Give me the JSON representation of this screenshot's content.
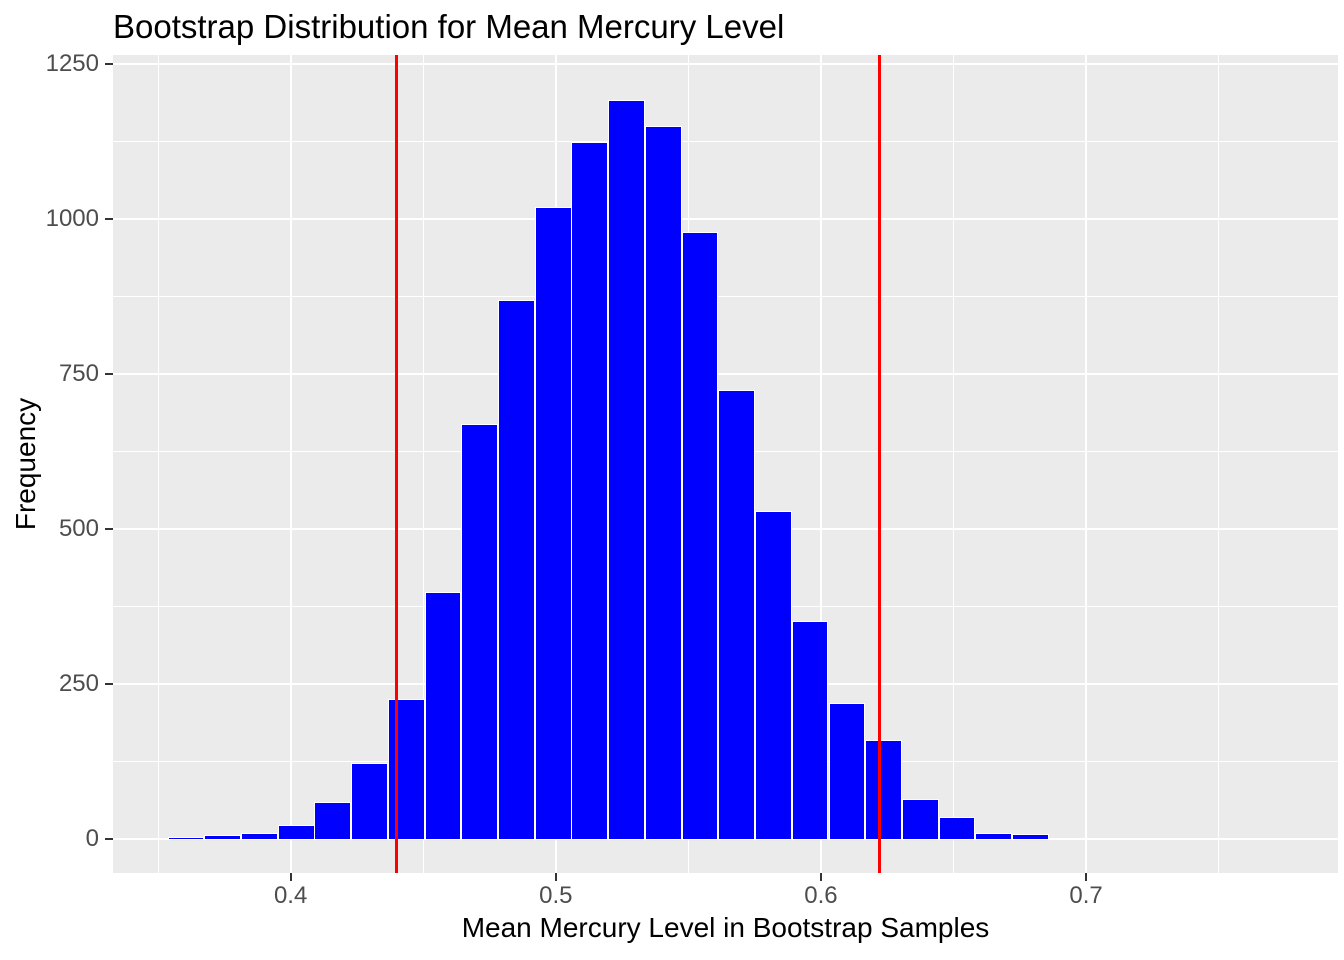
{
  "chart_data": {
    "type": "bar",
    "subtype": "histogram",
    "title": "Bootstrap Distribution for Mean Mercury Level",
    "xlabel": "Mean Mercury Level in Bootstrap Samples",
    "ylabel": "Frequency",
    "x_ticks": [
      0.4,
      0.5,
      0.6,
      0.7
    ],
    "x_minor_ticks": [
      0.35,
      0.45,
      0.55,
      0.65,
      0.75
    ],
    "y_ticks": [
      0,
      250,
      500,
      750,
      1000,
      1250
    ],
    "y_minor_ticks": [
      125,
      375,
      625,
      875,
      1125
    ],
    "xlim": [
      0.333,
      0.795
    ],
    "ylim": [
      -55,
      1265
    ],
    "binwidth": 0.01385,
    "bin_centers": [
      0.3605,
      0.3744,
      0.3882,
      0.4021,
      0.4159,
      0.4298,
      0.4436,
      0.4575,
      0.4713,
      0.4851,
      0.499,
      0.5128,
      0.5267,
      0.5405,
      0.5544,
      0.5682,
      0.5821,
      0.5959,
      0.6098,
      0.6236,
      0.6375,
      0.6513,
      0.6652,
      0.679,
      0.6929,
      0.7067,
      0.7206,
      0.7344,
      0.7483,
      0.7621
    ],
    "counts": [
      3,
      6,
      10,
      23,
      60,
      122,
      225,
      399,
      670,
      869,
      1019,
      1124,
      1193,
      1151,
      979,
      724,
      529,
      352,
      220,
      160,
      64,
      35,
      9,
      8,
      0,
      0,
      0,
      0,
      0,
      2
    ],
    "vlines": [
      0.44,
      0.622
    ],
    "grid": "on",
    "legend": "none",
    "colors": {
      "bar_fill": "#0000FF",
      "bar_outline": "#FFFFFF",
      "vline": "#FF0000",
      "panel_bg": "#EBEBEB",
      "gridline": "#FFFFFF",
      "tick_text": "#4D4D4D",
      "title_text": "#000000"
    }
  }
}
